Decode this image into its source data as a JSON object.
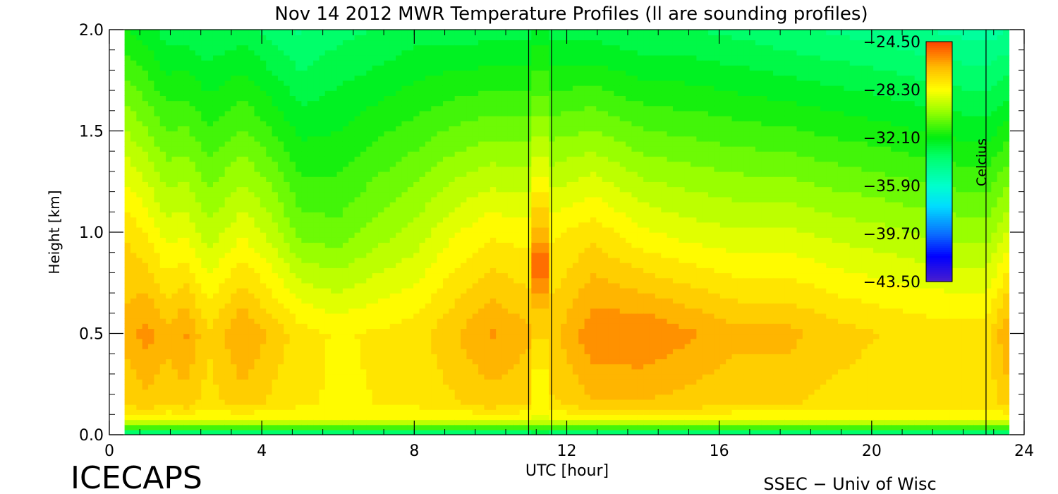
{
  "chart_data": {
    "type": "heatmap",
    "title": "Nov 14 2012 MWR Temperature Profiles (ll are sounding profiles)",
    "xlabel": "UTC [hour]",
    "ylabel": "Height [km]",
    "xlim": [
      0,
      24
    ],
    "ylim": [
      0,
      2.0
    ],
    "xticks": [
      "0",
      "4",
      "8",
      "12",
      "16",
      "20",
      "24"
    ],
    "yticks": [
      "0.0",
      "0.5",
      "1.0",
      "1.5",
      "2.0"
    ],
    "x_minor_step": 0.8,
    "y_minor_step": 0.1,
    "data_x_range": [
      0.4,
      23.6
    ],
    "colorbar": {
      "label": "Celcius",
      "ticks": [
        "−24.50",
        "−28.30",
        "−32.10",
        "−35.90",
        "−39.70",
        "−43.50"
      ],
      "range": [
        -43.5,
        -24.5
      ],
      "placement": "top-right inside plot"
    },
    "colormap": [
      [
        -43.5,
        "#4b1fcc"
      ],
      [
        -41.5,
        "#0000ff"
      ],
      [
        -39.7,
        "#0a6eff"
      ],
      [
        -37.5,
        "#00ddff"
      ],
      [
        -35.9,
        "#00ffcc"
      ],
      [
        -33.5,
        "#00ff66"
      ],
      [
        -32.1,
        "#00ee10"
      ],
      [
        -30.0,
        "#99ff00"
      ],
      [
        -28.3,
        "#ffff00"
      ],
      [
        -26.5,
        "#ffbb00"
      ],
      [
        -24.5,
        "#ff4400"
      ]
    ],
    "sounding_profiles_utc": [
      11.0,
      11.6,
      23.0
    ],
    "sounding_column": {
      "x_range": [
        11.0,
        11.6
      ],
      "temperature_by_height": [
        {
          "height": 0.0,
          "temp": -34.0
        },
        {
          "height": 0.05,
          "temp": -30.0
        },
        {
          "height": 0.1,
          "temp": -28.2
        },
        {
          "height": 0.3,
          "temp": -28.0
        },
        {
          "height": 0.6,
          "temp": -26.8
        },
        {
          "height": 0.85,
          "temp": -25.0
        },
        {
          "height": 1.0,
          "temp": -26.5
        },
        {
          "height": 1.3,
          "temp": -28.6
        },
        {
          "height": 1.6,
          "temp": -30.5
        },
        {
          "height": 2.0,
          "temp": -32.5
        }
      ]
    },
    "profiles": [
      {
        "utc": 0.4,
        "t_0_5km": -26.5,
        "t_1km": -27.3,
        "t_2km": -32.0
      },
      {
        "utc": 1.0,
        "t_0_5km": -25.8,
        "t_1km": -28.0,
        "t_2km": -32.5
      },
      {
        "utc": 1.5,
        "t_0_5km": -26.5,
        "t_1km": -28.8,
        "t_2km": -33.0
      },
      {
        "utc": 2.0,
        "t_0_5km": -26.0,
        "t_1km": -28.6,
        "t_2km": -33.0
      },
      {
        "utc": 2.6,
        "t_0_5km": -27.2,
        "t_1km": -29.5,
        "t_2km": -33.3
      },
      {
        "utc": 3.5,
        "t_0_5km": -26.0,
        "t_1km": -28.6,
        "t_2km": -33.0
      },
      {
        "utc": 4.2,
        "t_0_5km": -26.8,
        "t_1km": -29.3,
        "t_2km": -33.5
      },
      {
        "utc": 5.0,
        "t_0_5km": -27.6,
        "t_1km": -30.5,
        "t_2km": -34.0
      },
      {
        "utc": 6.0,
        "t_0_5km": -28.0,
        "t_1km": -30.7,
        "t_2km": -33.5
      },
      {
        "utc": 7.0,
        "t_0_5km": -27.8,
        "t_1km": -30.0,
        "t_2km": -33.3
      },
      {
        "utc": 8.0,
        "t_0_5km": -27.6,
        "t_1km": -29.5,
        "t_2km": -33.0
      },
      {
        "utc": 9.0,
        "t_0_5km": -26.8,
        "t_1km": -28.6,
        "t_2km": -33.0
      },
      {
        "utc": 10.0,
        "t_0_5km": -26.0,
        "t_1km": -28.0,
        "t_2km": -33.0
      },
      {
        "utc": 10.9,
        "t_0_5km": -26.5,
        "t_1km": -28.2,
        "t_2km": -33.0
      },
      {
        "utc": 11.7,
        "t_0_5km": -26.8,
        "t_1km": -28.0,
        "t_2km": -33.0
      },
      {
        "utc": 12.7,
        "t_0_5km": -25.6,
        "t_1km": -27.5,
        "t_2km": -33.0
      },
      {
        "utc": 14.0,
        "t_0_5km": -25.5,
        "t_1km": -28.4,
        "t_2km": -33.3
      },
      {
        "utc": 15.3,
        "t_0_5km": -26.0,
        "t_1km": -28.8,
        "t_2km": -33.3
      },
      {
        "utc": 16.5,
        "t_0_5km": -26.5,
        "t_1km": -29.0,
        "t_2km": -33.5
      },
      {
        "utc": 17.8,
        "t_0_5km": -26.5,
        "t_1km": -29.0,
        "t_2km": -33.8
      },
      {
        "utc": 19.0,
        "t_0_5km": -27.0,
        "t_1km": -29.3,
        "t_2km": -34.0
      },
      {
        "utc": 20.2,
        "t_0_5km": -27.3,
        "t_1km": -29.5,
        "t_2km": -34.2
      },
      {
        "utc": 21.5,
        "t_0_5km": -27.5,
        "t_1km": -29.8,
        "t_2km": -34.5
      },
      {
        "utc": 23.0,
        "t_0_5km": -27.5,
        "t_1km": -30.0,
        "t_2km": -34.8
      },
      {
        "utc": 23.6,
        "t_0_5km": -26.0,
        "t_1km": -29.0,
        "t_2km": -34.5
      }
    ]
  },
  "footer": {
    "left_text": "ICECAPS",
    "right_text": "SSEC − Univ of Wisc"
  }
}
